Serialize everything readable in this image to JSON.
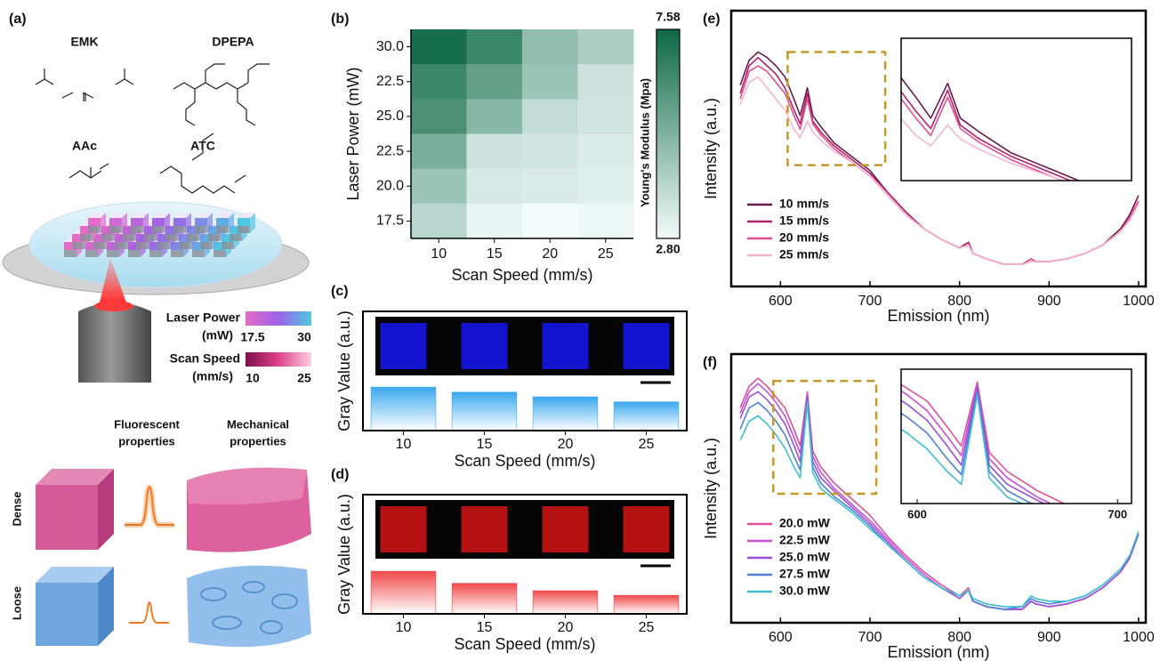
{
  "figure_a": {
    "label": "(a)",
    "molecules": [
      "EMK",
      "DPEPA",
      "AAc",
      "ATC"
    ],
    "laser_power": {
      "title": "Laser Power",
      "unit": "(mW)",
      "range": [
        17.5,
        30
      ],
      "colors": [
        "#e46cc6",
        "#9c62e6",
        "#4ec8e2"
      ]
    },
    "scan_speed": {
      "title": "Scan Speed",
      "unit": "(mm/s)",
      "range": [
        10,
        25
      ],
      "colors": [
        "#7c1048",
        "#e0408a",
        "#fbd0e2"
      ]
    },
    "fluorescent": [
      "Fluorescent",
      "properties"
    ],
    "mechanical": [
      "Mechanical",
      "properties"
    ],
    "rows": [
      "Dense",
      "Loose"
    ]
  },
  "chart_data": [
    {
      "type": "heatmap",
      "label": "(b)",
      "categories": [
        "10",
        "15",
        "20",
        "25"
      ],
      "y_categories": [
        "30.0",
        "22.5",
        "25.0",
        "22.5",
        "20.0",
        "17.5"
      ],
      "values": [
        [
          7.4,
          6.6,
          4.8,
          4.3
        ],
        [
          6.6,
          5.8,
          4.6,
          3.6
        ],
        [
          6.3,
          5.0,
          3.8,
          3.5
        ],
        [
          5.3,
          3.6,
          3.5,
          3.3
        ],
        [
          4.6,
          3.4,
          3.3,
          3.2
        ],
        [
          4.0,
          3.0,
          2.8,
          2.9
        ]
      ],
      "xlabel": "Scan Speed (mm/s)",
      "ylabel": "Laser Power (mW)",
      "colorbar": {
        "label": "Young's Modulus (Mpa)",
        "zlim": [
          2.8,
          7.58
        ],
        "zticks": [
          {
            "value": 2.8,
            "label": "2.80"
          },
          7.58
        ],
        "colors": [
          "#f3fbfb",
          "#0d6846"
        ]
      }
    },
    {
      "type": "bar",
      "label": "(c)",
      "categories": [
        "10",
        "15",
        "20",
        "25"
      ],
      "values": [
        0.94,
        0.83,
        0.73,
        0.62
      ],
      "ylim": [
        0,
        1
      ],
      "color": "#3aa8ee",
      "image_color": "#1414e6",
      "xlabel": "Scan Speed (mm/s)",
      "ylabel": "Gray Value (a.u.)"
    },
    {
      "type": "bar",
      "label": "(d)",
      "categories": [
        "10",
        "15",
        "20",
        "25"
      ],
      "values": [
        0.92,
        0.66,
        0.5,
        0.4
      ],
      "ylim": [
        0,
        1
      ],
      "color": "#f04848",
      "image_color": "#c81414",
      "xlabel": "Scan Speed (mm/s)",
      "ylabel": "Gray Value (a.u.)"
    },
    {
      "type": "line",
      "label": "(e)",
      "x": [
        555,
        565,
        575,
        585,
        595,
        605,
        615,
        622,
        630,
        636,
        645,
        660,
        680,
        700,
        720,
        740,
        760,
        780,
        800,
        810,
        815,
        830,
        850,
        870,
        880,
        885,
        900,
        920,
        940,
        960,
        980,
        990,
        1000
      ],
      "series": [
        {
          "name": "10 mm/s",
          "color": "#6b1a4a",
          "values": [
            0.73,
            0.82,
            0.85,
            0.83,
            0.8,
            0.76,
            0.68,
            0.62,
            0.72,
            0.62,
            0.58,
            0.52,
            0.47,
            0.42,
            0.34,
            0.27,
            0.21,
            0.17,
            0.14,
            0.16,
            0.12,
            0.1,
            0.08,
            0.08,
            0.1,
            0.09,
            0.09,
            0.1,
            0.12,
            0.15,
            0.21,
            0.26,
            0.33
          ]
        },
        {
          "name": "15 mm/s",
          "color": "#b3206e",
          "values": [
            0.7,
            0.8,
            0.83,
            0.8,
            0.77,
            0.72,
            0.64,
            0.59,
            0.7,
            0.6,
            0.56,
            0.51,
            0.46,
            0.41,
            0.34,
            0.27,
            0.21,
            0.17,
            0.14,
            0.16,
            0.12,
            0.1,
            0.08,
            0.08,
            0.1,
            0.09,
            0.09,
            0.1,
            0.12,
            0.15,
            0.2,
            0.25,
            0.31
          ]
        },
        {
          "name": "20 mm/s",
          "color": "#e0508e",
          "values": [
            0.68,
            0.78,
            0.8,
            0.78,
            0.74,
            0.7,
            0.62,
            0.57,
            0.68,
            0.59,
            0.55,
            0.5,
            0.45,
            0.4,
            0.33,
            0.26,
            0.21,
            0.17,
            0.14,
            0.15,
            0.12,
            0.1,
            0.08,
            0.08,
            0.1,
            0.09,
            0.09,
            0.1,
            0.12,
            0.15,
            0.2,
            0.25,
            0.31
          ]
        },
        {
          "name": "25 mm/s",
          "color": "#f4b6cf",
          "values": [
            0.66,
            0.74,
            0.76,
            0.72,
            0.68,
            0.64,
            0.57,
            0.54,
            0.6,
            0.56,
            0.53,
            0.49,
            0.45,
            0.4,
            0.33,
            0.26,
            0.21,
            0.17,
            0.14,
            0.15,
            0.12,
            0.1,
            0.08,
            0.08,
            0.09,
            0.09,
            0.09,
            0.1,
            0.12,
            0.15,
            0.2,
            0.24,
            0.3
          ]
        }
      ],
      "xlim": [
        545,
        1008
      ],
      "xticks": [
        600,
        700,
        800,
        900,
        1000
      ],
      "ylim": [
        0,
        1
      ],
      "xlabel": "Emission (nm)",
      "ylabel": "Intensity (a.u.)",
      "legend": "lower left",
      "inset": {
        "xlim": [
          608,
          717
        ],
        "ylim": [
          0.44,
          0.85
        ]
      }
    },
    {
      "type": "line",
      "label": "(f)",
      "x": [
        555,
        565,
        575,
        585,
        595,
        605,
        615,
        622,
        630,
        636,
        645,
        660,
        680,
        700,
        720,
        740,
        760,
        780,
        800,
        810,
        815,
        830,
        850,
        870,
        880,
        885,
        900,
        920,
        940,
        960,
        980,
        990,
        1000
      ],
      "series": [
        {
          "name": "20.0 mW",
          "color": "#e0509a",
          "values": [
            0.8,
            0.88,
            0.91,
            0.88,
            0.84,
            0.8,
            0.72,
            0.66,
            0.86,
            0.64,
            0.58,
            0.52,
            0.46,
            0.4,
            0.32,
            0.25,
            0.19,
            0.14,
            0.1,
            0.13,
            0.08,
            0.06,
            0.05,
            0.05,
            0.08,
            0.07,
            0.06,
            0.07,
            0.09,
            0.13,
            0.19,
            0.24,
            0.33
          ]
        },
        {
          "name": "22.5 mW",
          "color": "#c94fd6",
          "values": [
            0.78,
            0.86,
            0.89,
            0.86,
            0.82,
            0.77,
            0.69,
            0.63,
            0.85,
            0.62,
            0.56,
            0.5,
            0.44,
            0.38,
            0.31,
            0.24,
            0.18,
            0.13,
            0.1,
            0.12,
            0.08,
            0.06,
            0.05,
            0.05,
            0.08,
            0.07,
            0.06,
            0.07,
            0.09,
            0.13,
            0.19,
            0.24,
            0.33
          ]
        },
        {
          "name": "25.0 mW",
          "color": "#9a4fd8",
          "values": [
            0.76,
            0.84,
            0.86,
            0.83,
            0.79,
            0.74,
            0.66,
            0.6,
            0.84,
            0.6,
            0.54,
            0.49,
            0.43,
            0.37,
            0.3,
            0.23,
            0.17,
            0.13,
            0.09,
            0.12,
            0.08,
            0.06,
            0.05,
            0.05,
            0.08,
            0.07,
            0.06,
            0.07,
            0.09,
            0.13,
            0.19,
            0.24,
            0.33
          ]
        },
        {
          "name": "27.5 mW",
          "color": "#4f7fd8",
          "values": [
            0.72,
            0.8,
            0.82,
            0.79,
            0.75,
            0.7,
            0.62,
            0.57,
            0.83,
            0.58,
            0.52,
            0.47,
            0.42,
            0.36,
            0.29,
            0.23,
            0.17,
            0.13,
            0.1,
            0.12,
            0.08,
            0.06,
            0.05,
            0.06,
            0.09,
            0.08,
            0.07,
            0.08,
            0.1,
            0.14,
            0.2,
            0.25,
            0.33
          ]
        },
        {
          "name": "30.0 mW",
          "color": "#3cc0d0",
          "values": [
            0.68,
            0.75,
            0.77,
            0.74,
            0.7,
            0.65,
            0.58,
            0.54,
            0.82,
            0.56,
            0.5,
            0.46,
            0.41,
            0.35,
            0.29,
            0.23,
            0.17,
            0.13,
            0.1,
            0.12,
            0.09,
            0.07,
            0.06,
            0.06,
            0.1,
            0.09,
            0.08,
            0.08,
            0.1,
            0.14,
            0.2,
            0.25,
            0.34
          ]
        }
      ],
      "xlim": [
        545,
        1008
      ],
      "xticks": [
        600,
        700,
        800,
        900,
        1000
      ],
      "ylim": [
        0,
        1
      ],
      "xlabel": "Emission (nm)",
      "ylabel": "Intensity (a.u.)",
      "legend": "lower left",
      "inset": {
        "xlim": [
          592,
          707
        ],
        "ylim": [
          0.48,
          0.9
        ],
        "xticks": [
          600,
          700
        ]
      }
    }
  ]
}
